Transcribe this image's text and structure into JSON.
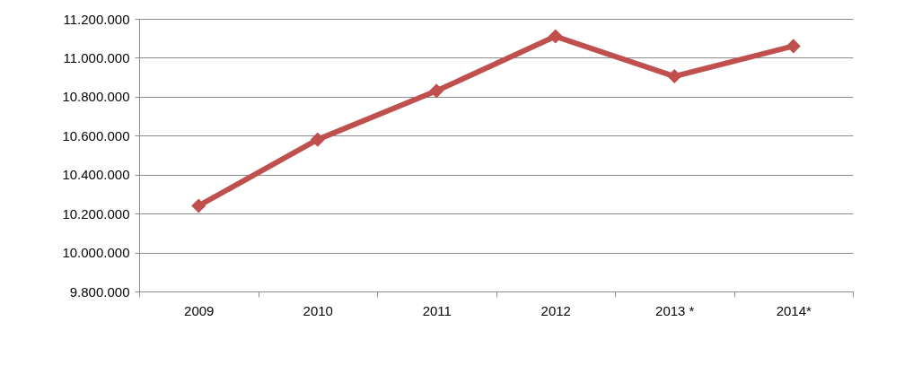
{
  "chart_data": {
    "type": "line",
    "categories": [
      "2009",
      "2010",
      "2011",
      "2012",
      "2013 *",
      "2014*"
    ],
    "series": [
      {
        "color": "#c0504d",
        "values": [
          10240000,
          10580000,
          10830000,
          11110000,
          10905000,
          11060000
        ]
      }
    ],
    "ylim": [
      9800000,
      11200000
    ],
    "yticks": [
      {
        "value": 9800000,
        "label": "9.800.000"
      },
      {
        "value": 10000000,
        "label": "10.000.000"
      },
      {
        "value": 10200000,
        "label": "10.200.000"
      },
      {
        "value": 10400000,
        "label": "10.400.000"
      },
      {
        "value": 10600000,
        "label": "10.600.000"
      },
      {
        "value": 10800000,
        "label": "10.800.000"
      },
      {
        "value": 11000000,
        "label": "11.000.000"
      },
      {
        "value": 11200000,
        "label": "11.200.000"
      }
    ],
    "grid": "y",
    "marker": "diamond",
    "line_style": "solid"
  }
}
